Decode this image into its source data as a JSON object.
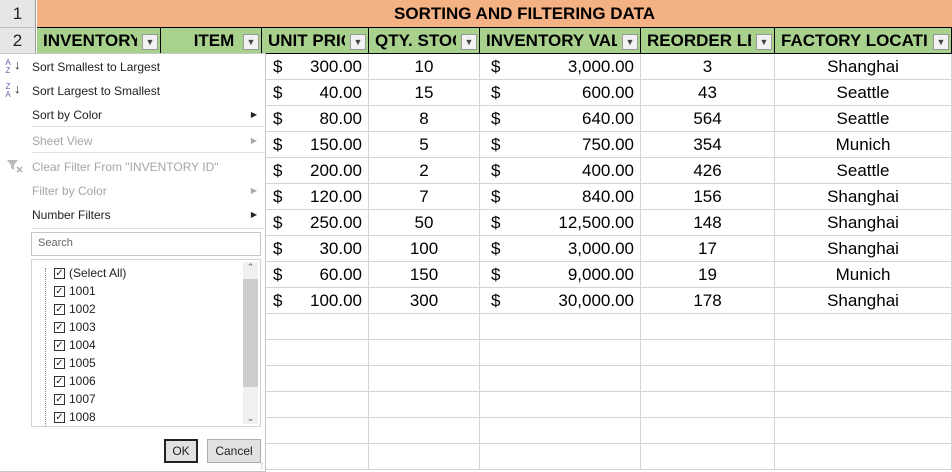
{
  "title": "SORTING AND FILTERING DATA",
  "row_numbers": [
    "1",
    "2"
  ],
  "headers": [
    "INVENTORY I",
    "ITEM",
    "UNIT PRIC",
    "QTY. STOCK",
    "INVENTORY VALU",
    "REORDER LEVI",
    "FACTORY LOCATIO"
  ],
  "rows": [
    [
      "$",
      "300.00",
      "10",
      "$",
      "3,000.00",
      "3",
      "Shanghai"
    ],
    [
      "$",
      "40.00",
      "15",
      "$",
      "600.00",
      "43",
      "Seattle"
    ],
    [
      "$",
      "80.00",
      "8",
      "$",
      "640.00",
      "564",
      "Seattle"
    ],
    [
      "$",
      "150.00",
      "5",
      "$",
      "750.00",
      "354",
      "Munich"
    ],
    [
      "$",
      "200.00",
      "2",
      "$",
      "400.00",
      "426",
      "Seattle"
    ],
    [
      "$",
      "120.00",
      "7",
      "$",
      "840.00",
      "156",
      "Shanghai"
    ],
    [
      "$",
      "250.00",
      "50",
      "$",
      "12,500.00",
      "148",
      "Shanghai"
    ],
    [
      "$",
      "30.00",
      "100",
      "$",
      "3,000.00",
      "17",
      "Shanghai"
    ],
    [
      "$",
      "60.00",
      "150",
      "$",
      "9,000.00",
      "19",
      "Munich"
    ],
    [
      "$",
      "100.00",
      "300",
      "$",
      "30,000.00",
      "178",
      "Shanghai"
    ]
  ],
  "menu": {
    "sort_asc": "Sort Smallest to Largest",
    "sort_desc": "Sort Largest to Smallest",
    "sort_color": "Sort by Color",
    "sheet_view": "Sheet View",
    "clear_filter": "Clear Filter From \"INVENTORY ID\"",
    "filter_color": "Filter by Color",
    "number_filters": "Number Filters",
    "search_placeholder": "Search",
    "items": [
      "(Select All)",
      "1001",
      "1002",
      "1003",
      "1004",
      "1005",
      "1006",
      "1007",
      "1008"
    ],
    "ok": "OK",
    "cancel": "Cancel"
  },
  "colors": {
    "title_bg": "#f4b183",
    "header_bg": "#a9d18e"
  }
}
